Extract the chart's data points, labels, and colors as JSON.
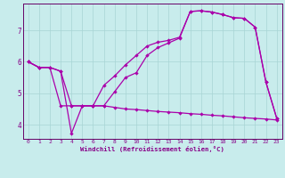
{
  "xlabel": "Windchill (Refroidissement éolien,°C)",
  "bg_color": "#c8ecec",
  "grid_color": "#a8d4d4",
  "line_color": "#aa00aa",
  "text_color": "#880088",
  "spine_color": "#660066",
  "xlim": [
    -0.5,
    23.5
  ],
  "ylim": [
    3.55,
    7.85
  ],
  "yticks": [
    4,
    5,
    6,
    7
  ],
  "xticks": [
    0,
    1,
    2,
    3,
    4,
    5,
    6,
    7,
    8,
    9,
    10,
    11,
    12,
    13,
    14,
    15,
    16,
    17,
    18,
    19,
    20,
    21,
    22,
    23
  ],
  "line1_x": [
    0,
    1,
    2,
    3,
    4,
    5,
    6,
    7,
    8,
    9,
    10,
    11,
    12,
    13,
    14,
    15,
    16,
    17,
    18,
    19,
    20,
    21,
    22,
    23
  ],
  "line1_y": [
    6.0,
    5.82,
    5.82,
    5.7,
    4.6,
    4.6,
    4.6,
    4.6,
    5.05,
    5.5,
    5.65,
    6.2,
    6.45,
    6.6,
    6.75,
    7.6,
    7.62,
    7.58,
    7.5,
    7.4,
    7.38,
    7.1,
    5.35,
    4.2
  ],
  "line2_x": [
    0,
    1,
    2,
    3,
    4,
    5,
    6,
    7,
    8,
    9,
    10,
    11,
    12,
    13,
    14,
    15,
    16,
    17,
    18,
    19,
    20,
    21,
    22,
    23
  ],
  "line2_y": [
    6.0,
    5.82,
    5.82,
    5.7,
    3.72,
    4.6,
    4.6,
    5.25,
    5.55,
    5.9,
    6.2,
    6.5,
    6.62,
    6.68,
    6.78,
    7.6,
    7.62,
    7.58,
    7.5,
    7.4,
    7.38,
    7.1,
    5.35,
    4.2
  ],
  "line3_x": [
    0,
    1,
    2,
    3,
    4,
    5,
    6,
    7,
    8,
    9,
    10,
    11,
    12,
    13,
    14,
    15,
    16,
    17,
    18,
    19,
    20,
    21,
    22,
    23
  ],
  "line3_y": [
    6.0,
    5.82,
    5.82,
    4.6,
    4.6,
    4.6,
    4.6,
    4.6,
    4.55,
    4.5,
    4.48,
    4.45,
    4.42,
    4.4,
    4.38,
    4.35,
    4.33,
    4.3,
    4.28,
    4.25,
    4.22,
    4.2,
    4.18,
    4.15
  ]
}
